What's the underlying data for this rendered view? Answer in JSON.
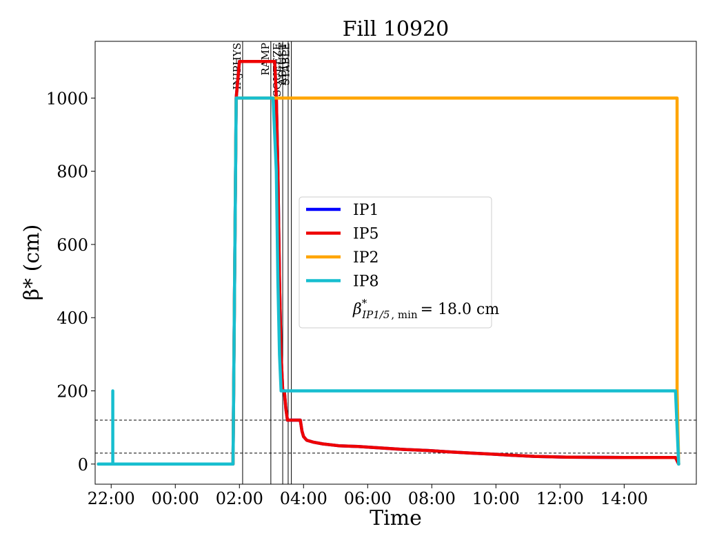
{
  "chart_data": {
    "type": "line",
    "title": "Fill 10920",
    "xlabel": "Time",
    "ylabel": "β* (cm)",
    "x_unit": "hours since 22:00 (day 1)",
    "xlim": [
      -0.5,
      18.25
    ],
    "ylim": [
      -55,
      1155
    ],
    "x_ticks": [
      {
        "x": 0,
        "label": "22:00"
      },
      {
        "x": 2,
        "label": "00:00"
      },
      {
        "x": 4,
        "label": "02:00"
      },
      {
        "x": 6,
        "label": "04:00"
      },
      {
        "x": 8,
        "label": "06:00"
      },
      {
        "x": 10,
        "label": "08:00"
      },
      {
        "x": 12,
        "label": "10:00"
      },
      {
        "x": 14,
        "label": "12:00"
      },
      {
        "x": 16,
        "label": "14:00"
      }
    ],
    "y_ticks": [
      {
        "y": 0,
        "label": "0"
      },
      {
        "y": 200,
        "label": "200"
      },
      {
        "y": 400,
        "label": "400"
      },
      {
        "y": 600,
        "label": "600"
      },
      {
        "y": 800,
        "label": "800"
      },
      {
        "y": 1000,
        "label": "1000"
      }
    ],
    "phase_lines": [
      {
        "x": 4.1,
        "label": "INJPHYS"
      },
      {
        "x": 4.98,
        "label": "RAMP"
      },
      {
        "x": 5.35,
        "label": "SQUEEZE"
      },
      {
        "x": 5.52,
        "label": "ADJUST"
      },
      {
        "x": 5.62,
        "label": "STABLE"
      }
    ],
    "reference_lines": [
      {
        "y": 120,
        "style": "dashed"
      },
      {
        "y": 30,
        "style": "dashed"
      }
    ],
    "legend": {
      "placement": "center",
      "note": "β*IP1/5, min = 18.0 cm"
    },
    "series": [
      {
        "name": "IP1",
        "color": "#0000ff",
        "points": [
          [
            -0.4,
            0
          ],
          [
            3.8,
            0
          ],
          [
            3.9,
            1000
          ],
          [
            4.0,
            1100
          ],
          [
            5.1,
            1100
          ],
          [
            5.15,
            1000
          ],
          [
            5.2,
            800
          ],
          [
            5.25,
            500
          ],
          [
            5.3,
            300
          ],
          [
            5.35,
            200
          ],
          [
            5.4,
            200
          ],
          [
            5.45,
            150
          ],
          [
            5.5,
            120
          ],
          [
            5.9,
            120
          ],
          [
            5.95,
            90
          ],
          [
            6.0,
            75
          ],
          [
            6.1,
            65
          ],
          [
            6.3,
            60
          ],
          [
            6.6,
            55
          ],
          [
            7.1,
            50
          ],
          [
            7.7,
            48
          ],
          [
            8.4,
            44
          ],
          [
            9.1,
            40
          ],
          [
            9.9,
            37
          ],
          [
            10.6,
            33
          ],
          [
            11.2,
            30
          ],
          [
            11.9,
            27
          ],
          [
            12.5,
            24
          ],
          [
            13.2,
            21
          ],
          [
            14.2,
            19
          ],
          [
            16.0,
            18
          ],
          [
            17.6,
            18
          ],
          [
            17.7,
            0
          ]
        ]
      },
      {
        "name": "IP5",
        "color": "#ee0000",
        "points": [
          [
            -0.4,
            0
          ],
          [
            3.8,
            0
          ],
          [
            3.9,
            1000
          ],
          [
            4.0,
            1100
          ],
          [
            5.1,
            1100
          ],
          [
            5.15,
            1000
          ],
          [
            5.2,
            800
          ],
          [
            5.25,
            500
          ],
          [
            5.3,
            300
          ],
          [
            5.35,
            200
          ],
          [
            5.4,
            200
          ],
          [
            5.45,
            150
          ],
          [
            5.5,
            120
          ],
          [
            5.9,
            120
          ],
          [
            5.95,
            90
          ],
          [
            6.0,
            75
          ],
          [
            6.1,
            65
          ],
          [
            6.3,
            60
          ],
          [
            6.6,
            55
          ],
          [
            7.1,
            50
          ],
          [
            7.7,
            48
          ],
          [
            8.4,
            44
          ],
          [
            9.1,
            40
          ],
          [
            9.9,
            37
          ],
          [
            10.6,
            33
          ],
          [
            11.2,
            30
          ],
          [
            11.9,
            27
          ],
          [
            12.5,
            24
          ],
          [
            13.2,
            21
          ],
          [
            14.2,
            19
          ],
          [
            16.0,
            18
          ],
          [
            17.6,
            18
          ],
          [
            17.7,
            0
          ]
        ]
      },
      {
        "name": "IP2",
        "color": "#ffa500",
        "points": [
          [
            -0.4,
            0
          ],
          [
            3.8,
            0
          ],
          [
            3.9,
            1000
          ],
          [
            17.65,
            1000
          ],
          [
            17.65,
            200
          ],
          [
            17.7,
            0
          ]
        ]
      },
      {
        "name": "IP8",
        "color": "#17becf",
        "points": [
          [
            -0.4,
            0
          ],
          [
            0.05,
            0
          ],
          [
            0.05,
            200
          ],
          [
            0.05,
            0
          ],
          [
            3.8,
            0
          ],
          [
            3.9,
            1000
          ],
          [
            5.05,
            1000
          ],
          [
            5.15,
            800
          ],
          [
            5.2,
            500
          ],
          [
            5.25,
            300
          ],
          [
            5.3,
            200
          ],
          [
            17.6,
            200
          ],
          [
            17.7,
            0
          ]
        ]
      }
    ]
  }
}
